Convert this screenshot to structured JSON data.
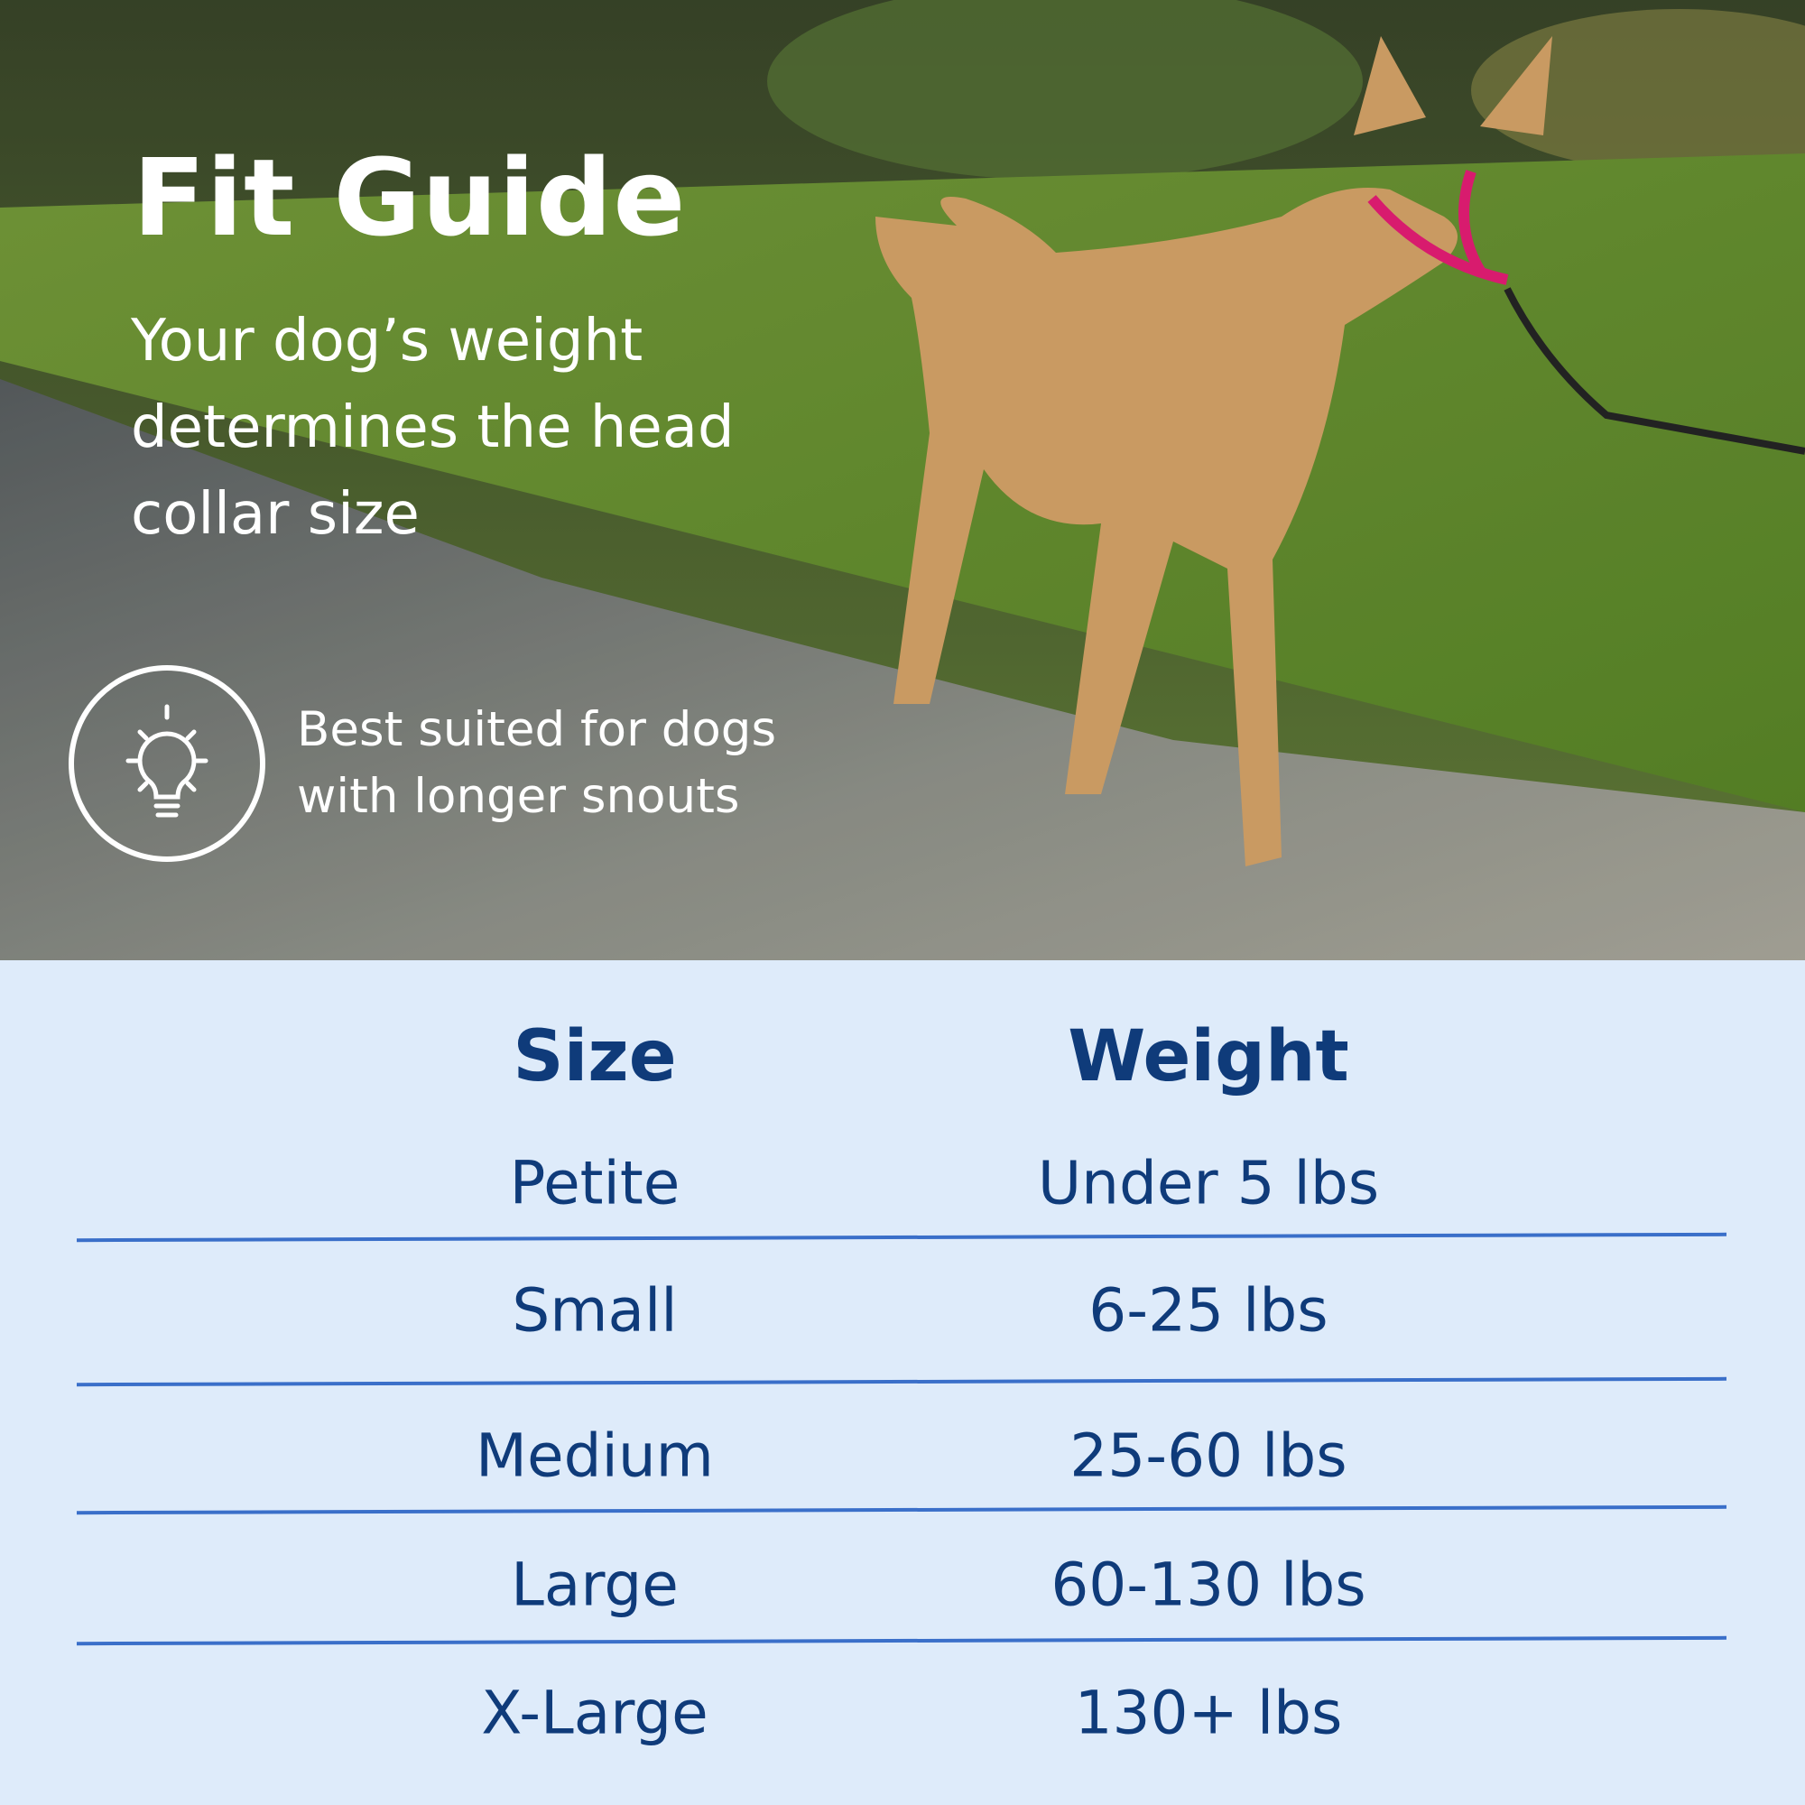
{
  "hero": {
    "title": "Fit Guide",
    "subtitle": "Your dog’s weight determines the head collar size",
    "tip": {
      "icon": "lightbulb-icon",
      "text": "Best suited for dogs with longer snouts"
    }
  },
  "table": {
    "headers": [
      "Size",
      "Weight"
    ],
    "rows": [
      [
        "Petite",
        "Under 5 lbs"
      ],
      [
        "Small",
        "6-25 lbs"
      ],
      [
        "Medium",
        "25-60 lbs"
      ],
      [
        "Large",
        "60-130 lbs"
      ],
      [
        "X-Large",
        "130+ lbs"
      ]
    ]
  },
  "colors": {
    "text": "#0f3b7a",
    "rule": "#3a6fc9",
    "panel": "#deebfa",
    "collar": "#d81b6e"
  }
}
